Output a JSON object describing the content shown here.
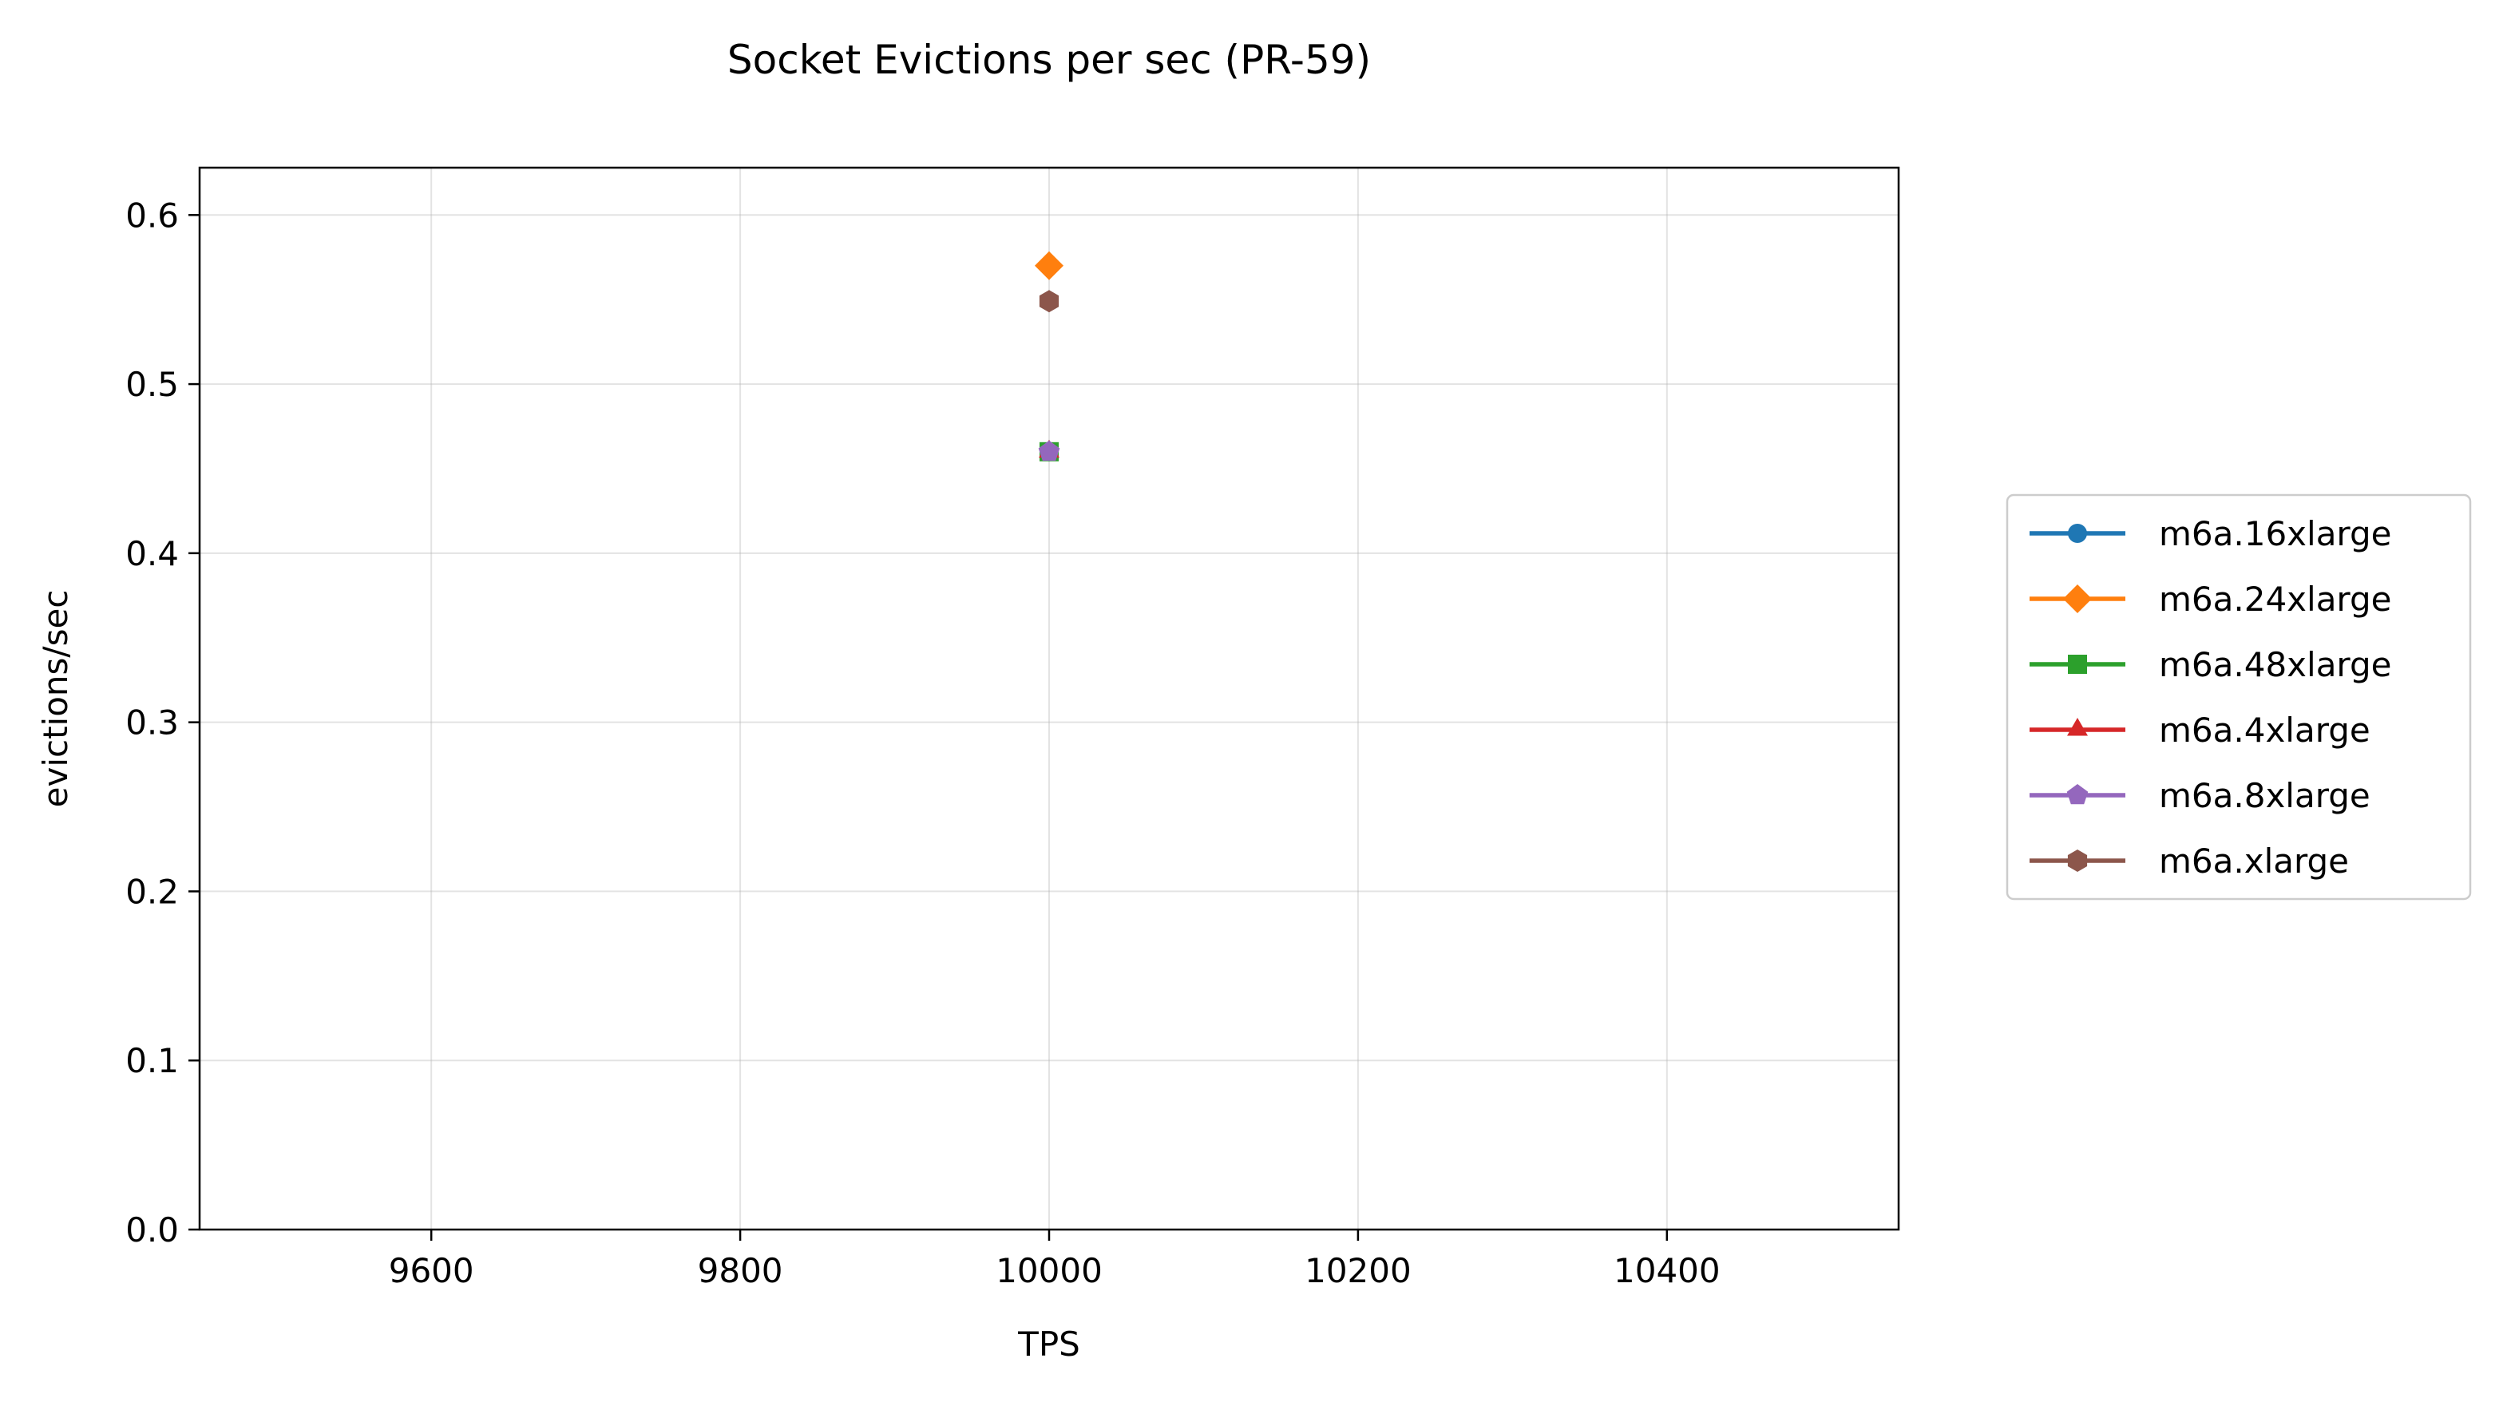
{
  "chart_data": {
    "type": "line",
    "title": "Socket Evictions per sec (PR-59)",
    "xlabel": "TPS",
    "ylabel": "evictions/sec",
    "xlim": [
      9450,
      10550
    ],
    "ylim": [
      0.0,
      0.628
    ],
    "xticks": [
      9600,
      9800,
      10000,
      10200,
      10400
    ],
    "xtick_labels": [
      "9600",
      "9800",
      "10000",
      "10200",
      "10400"
    ],
    "yticks": [
      0.0,
      0.1,
      0.2,
      0.3,
      0.4,
      0.5,
      0.6
    ],
    "ytick_labels": [
      "0.0",
      "0.1",
      "0.2",
      "0.3",
      "0.4",
      "0.5",
      "0.6"
    ],
    "grid": true,
    "legend_placement": "outside-right",
    "series": [
      {
        "name": "m6a.16xlarge",
        "color": "#1f77b4",
        "marker": "circle",
        "x": [
          10000
        ],
        "y": [
          0.46
        ]
      },
      {
        "name": "m6a.24xlarge",
        "color": "#ff7f0e",
        "marker": "diamond",
        "x": [
          10000
        ],
        "y": [
          0.57
        ]
      },
      {
        "name": "m6a.48xlarge",
        "color": "#2ca02c",
        "marker": "square",
        "x": [
          10000
        ],
        "y": [
          0.46
        ]
      },
      {
        "name": "m6a.4xlarge",
        "color": "#d62728",
        "marker": "triangle",
        "x": [
          10000
        ],
        "y": [
          0.46
        ]
      },
      {
        "name": "m6a.8xlarge",
        "color": "#9467bd",
        "marker": "pentagon",
        "x": [
          10000
        ],
        "y": [
          0.46
        ]
      },
      {
        "name": "m6a.xlarge",
        "color": "#8c564b",
        "marker": "hexagon",
        "x": [
          10000
        ],
        "y": [
          0.549
        ]
      }
    ]
  }
}
